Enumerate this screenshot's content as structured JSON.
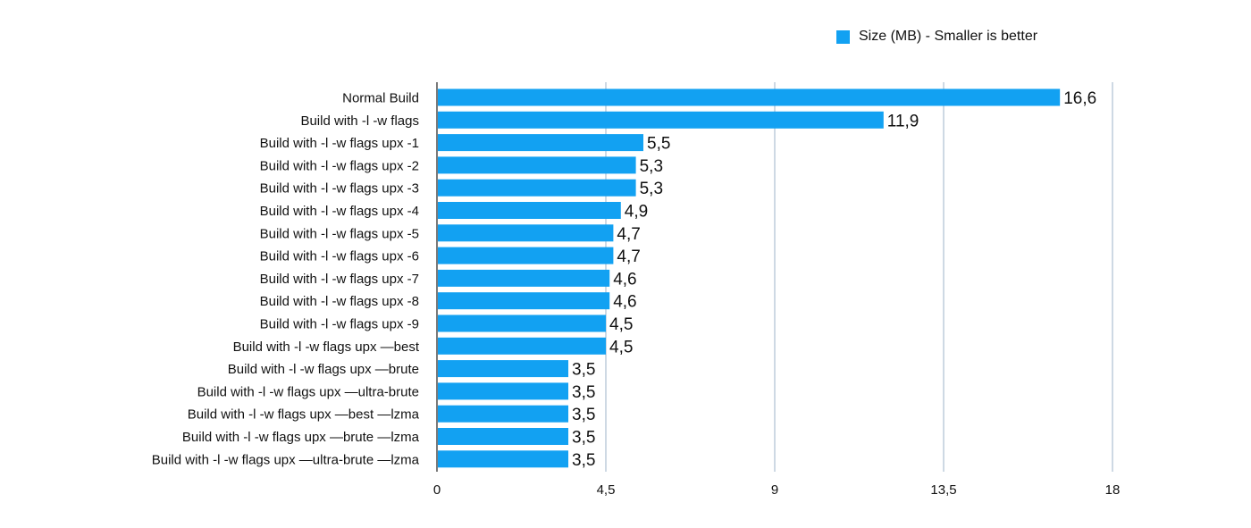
{
  "legend": {
    "label": "Size (MB) - Smaller is better"
  },
  "colors": {
    "bar": "#12a1f2",
    "grid": "#9db3c9",
    "axis": "#222222",
    "text": "#111111"
  },
  "chart_data": {
    "type": "bar",
    "orientation": "horizontal",
    "grid": true,
    "legend_position": "top-right",
    "categories": [
      "Normal Build",
      "Build with -l -w flags",
      "Build with -l -w flags upx -1",
      "Build with -l -w flags upx -2",
      "Build with -l -w flags upx -3",
      "Build with -l -w flags upx -4",
      "Build with -l -w flags upx -5",
      "Build with -l -w flags upx -6",
      "Build with -l -w flags upx -7",
      "Build with -l -w flags upx -8",
      "Build with -l -w flags upx -9",
      "Build with -l -w flags upx —best",
      "Build with -l -w flags upx —brute",
      "Build with -l -w flags upx —ultra-brute",
      "Build with -l -w flags upx —best —lzma",
      "Build with -l -w flags upx —brute —lzma",
      "Build with -l -w flags upx —ultra-brute —lzma"
    ],
    "series": [
      {
        "name": "Size (MB) - Smaller is better",
        "values": [
          16.6,
          11.9,
          5.5,
          5.3,
          5.3,
          4.9,
          4.7,
          4.7,
          4.6,
          4.6,
          4.5,
          4.5,
          3.5,
          3.5,
          3.5,
          3.5,
          3.5
        ],
        "labels": [
          "16,6",
          "11,9",
          "5,5",
          "5,3",
          "5,3",
          "4,9",
          "4,7",
          "4,7",
          "4,6",
          "4,6",
          "4,5",
          "4,5",
          "3,5",
          "3,5",
          "3,5",
          "3,5",
          "3,5"
        ]
      }
    ],
    "xlim": [
      0,
      18
    ],
    "xticks": [
      0,
      4.5,
      9,
      13.5,
      18
    ],
    "xtick_labels": [
      "0",
      "4,5",
      "9",
      "13,5",
      "18"
    ]
  }
}
